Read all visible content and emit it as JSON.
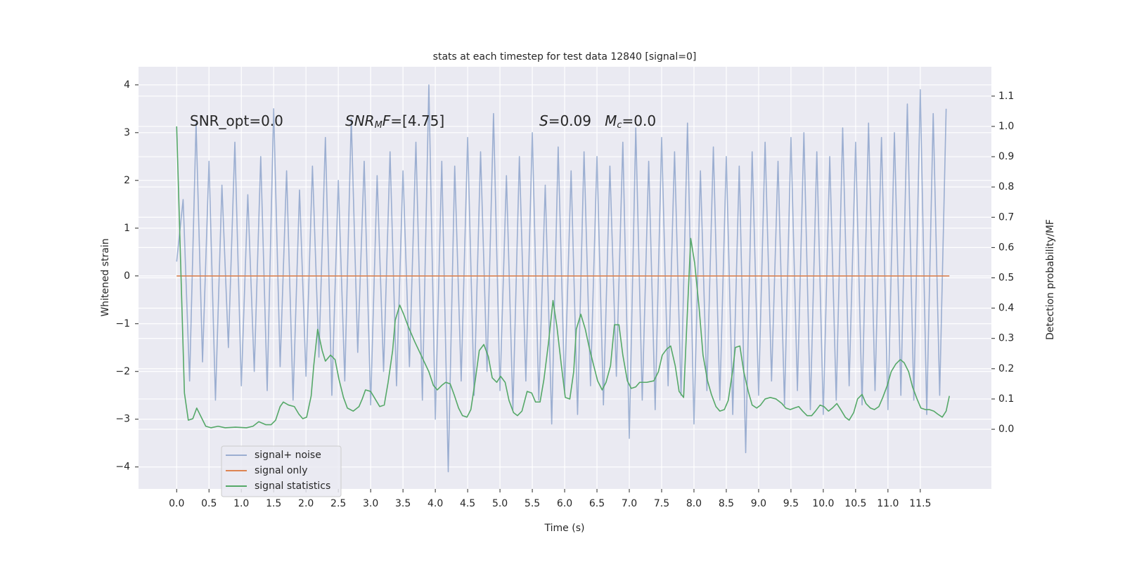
{
  "chart_data": {
    "type": "line",
    "title": "stats at each timestep for test data 12840 [signal=0]",
    "xlabel": "Time (s)",
    "ylabel": "Whitened strain",
    "y2label": "Detection probability/MF",
    "grid": true,
    "background": "#eaeaf2",
    "legend": "lower left",
    "xlim": [
      -0.59,
      12.6
    ],
    "ylim": [
      -4.46,
      4.38
    ],
    "y2lim": [
      -0.197,
      1.197
    ],
    "xticks": [
      {
        "value": 0,
        "label": "0.0"
      },
      0.5,
      {
        "value": 1,
        "label": "1.0"
      },
      1.5,
      {
        "value": 2,
        "label": "2.0"
      },
      2.5,
      {
        "value": 3,
        "label": "3.0"
      },
      3.5,
      {
        "value": 4,
        "label": "4.0"
      },
      4.5,
      {
        "value": 5,
        "label": "5.0"
      },
      5.5,
      {
        "value": 6,
        "label": "6.0"
      },
      6.5,
      {
        "value": 7,
        "label": "7.0"
      },
      7.5,
      {
        "value": 8,
        "label": "8.0"
      },
      8.5,
      {
        "value": 9,
        "label": "9.0"
      },
      9.5,
      {
        "value": 10,
        "label": "10.0"
      },
      10.5,
      {
        "value": 11,
        "label": "11.0"
      },
      11.5
    ],
    "yticks": [
      {
        "value": -4,
        "label": "−4"
      },
      {
        "value": -3,
        "label": "−3"
      },
      {
        "value": -2,
        "label": "−2"
      },
      {
        "value": -1,
        "label": "−1"
      },
      0,
      1,
      2,
      3,
      4
    ],
    "y2ticks": [
      {
        "value": 0,
        "label": "0.0"
      },
      0.1,
      0.2,
      0.3,
      0.4,
      0.5,
      0.6,
      0.7,
      0.8,
      0.9,
      {
        "value": 1,
        "label": "1.0"
      },
      1.1
    ],
    "annotations": [
      {
        "parts": [
          {
            "text": "SNR_opt=0.0",
            "style": "normal"
          }
        ]
      },
      {
        "parts": [
          {
            "text": "SNR",
            "style": "italic"
          },
          {
            "text": "M",
            "style": "sub"
          },
          {
            "text": "F",
            "style": "italic"
          },
          {
            "text": "=[4.75]",
            "style": "normal"
          }
        ]
      },
      {
        "parts": [
          {
            "text": "S",
            "style": "italic"
          },
          {
            "text": "=0.09   ",
            "style": "normal"
          },
          {
            "text": "M",
            "style": "italic"
          },
          {
            "text": "c",
            "style": "sub"
          },
          {
            "text": "=0.0",
            "style": "normal"
          }
        ]
      }
    ],
    "series": [
      {
        "name": "signal+ noise",
        "color": "#4c72b0",
        "opacity": 0.5,
        "axis": "y",
        "x": [
          0,
          0.1,
          0.2,
          0.3,
          0.4,
          0.5,
          0.6,
          0.7,
          0.8,
          0.9,
          1,
          1.1,
          1.2,
          1.3,
          1.4,
          1.5,
          1.6,
          1.7,
          1.8,
          1.9,
          2,
          2.1,
          2.2,
          2.3,
          2.4,
          2.5,
          2.6,
          2.7,
          2.8,
          2.9,
          3,
          3.1,
          3.2,
          3.3,
          3.4,
          3.5,
          3.6,
          3.7,
          3.8,
          3.9,
          4,
          4.1,
          4.2,
          4.3,
          4.4,
          4.5,
          4.6,
          4.7,
          4.8,
          4.9,
          5,
          5.1,
          5.2,
          5.3,
          5.4,
          5.5,
          5.6,
          5.7,
          5.8,
          5.9,
          6,
          6.1,
          6.2,
          6.3,
          6.4,
          6.5,
          6.6,
          6.7,
          6.8,
          6.9,
          7,
          7.1,
          7.2,
          7.3,
          7.4,
          7.5,
          7.6,
          7.7,
          7.8,
          7.9,
          8,
          8.1,
          8.2,
          8.3,
          8.4,
          8.5,
          8.6,
          8.7,
          8.8,
          8.9,
          9,
          9.1,
          9.2,
          9.3,
          9.4,
          9.5,
          9.6,
          9.7,
          9.8,
          9.9,
          10,
          10.1,
          10.2,
          10.3,
          10.4,
          10.5,
          10.6,
          10.7,
          10.8,
          10.9,
          11,
          11.1,
          11.2,
          11.3,
          11.4,
          11.5,
          11.6,
          11.7,
          11.8,
          11.9
        ],
        "values": [
          0.3,
          1.6,
          -2.2,
          3.2,
          -1.8,
          2.4,
          -2.6,
          1.9,
          -1.5,
          2.8,
          -2.3,
          1.7,
          -2.0,
          2.5,
          -2.4,
          3.5,
          -1.9,
          2.2,
          -2.6,
          1.8,
          -2.1,
          2.3,
          -1.7,
          2.9,
          -2.5,
          2.0,
          -2.2,
          3.3,
          -1.6,
          2.4,
          -2.7,
          2.1,
          -2.0,
          2.6,
          -2.3,
          2.2,
          -1.9,
          2.8,
          -2.6,
          4.0,
          -3.0,
          2.4,
          -4.1,
          2.3,
          -2.2,
          2.9,
          -2.5,
          2.6,
          -2.0,
          3.4,
          -2.4,
          2.1,
          -2.8,
          2.5,
          -2.2,
          3.0,
          -2.6,
          1.9,
          -3.1,
          2.7,
          -2.4,
          2.2,
          -2.9,
          2.6,
          -2.3,
          2.5,
          -2.7,
          2.3,
          -2.1,
          2.8,
          -3.4,
          3.1,
          -2.6,
          2.4,
          -2.8,
          2.9,
          -2.3,
          2.6,
          -2.5,
          3.2,
          -3.1,
          2.2,
          -2.4,
          2.7,
          -2.6,
          2.5,
          -2.9,
          2.3,
          -3.7,
          2.6,
          -2.5,
          2.8,
          -2.2,
          2.4,
          -2.7,
          2.9,
          -2.4,
          3.0,
          -2.8,
          2.6,
          -2.9,
          2.5,
          -2.6,
          3.1,
          -2.3,
          2.8,
          -2.7,
          3.2,
          -2.4,
          2.9,
          -2.8,
          3.0,
          -2.5,
          3.6,
          -2.6,
          3.9,
          -2.9,
          3.4,
          -2.5,
          3.5
        ]
      },
      {
        "name": "signal only",
        "color": "#dd8452",
        "opacity": 1,
        "axis": "y",
        "x": [
          0,
          11.95
        ],
        "values": [
          0,
          0
        ]
      },
      {
        "name": "signal statistics",
        "color": "#55a868",
        "opacity": 1,
        "axis": "y2",
        "x": [
          0,
          0.12,
          0.18,
          0.25,
          0.31,
          0.45,
          0.53,
          0.64,
          0.75,
          0.91,
          1.08,
          1.18,
          1.27,
          1.38,
          1.46,
          1.53,
          1.6,
          1.65,
          1.73,
          1.82,
          1.89,
          1.95,
          2.01,
          2.08,
          2.12,
          2.18,
          2.25,
          2.3,
          2.38,
          2.45,
          2.51,
          2.58,
          2.64,
          2.73,
          2.82,
          2.87,
          2.92,
          3,
          3.07,
          3.14,
          3.21,
          3.27,
          3.34,
          3.38,
          3.45,
          3.51,
          3.58,
          3.68,
          3.79,
          3.9,
          3.97,
          4.03,
          4.1,
          4.16,
          4.23,
          4.29,
          4.36,
          4.42,
          4.49,
          4.55,
          4.62,
          4.68,
          4.75,
          4.82,
          4.88,
          4.95,
          5.01,
          5.08,
          5.14,
          5.21,
          5.27,
          5.34,
          5.42,
          5.49,
          5.55,
          5.62,
          5.68,
          5.75,
          5.82,
          5.88,
          5.95,
          6.01,
          6.08,
          6.14,
          6.18,
          6.25,
          6.32,
          6.38,
          6.45,
          6.51,
          6.58,
          6.64,
          6.71,
          6.77,
          6.84,
          6.9,
          6.97,
          7.03,
          7.1,
          7.16,
          7.27,
          7.38,
          7.45,
          7.51,
          7.58,
          7.64,
          7.71,
          7.77,
          7.84,
          7.88,
          7.95,
          8.01,
          8.08,
          8.14,
          8.21,
          8.27,
          8.34,
          8.4,
          8.47,
          8.53,
          8.6,
          8.64,
          8.71,
          8.77,
          8.84,
          8.9,
          8.97,
          9.03,
          9.1,
          9.18,
          9.27,
          9.36,
          9.42,
          9.49,
          9.55,
          9.62,
          9.68,
          9.75,
          9.82,
          9.88,
          9.95,
          10.01,
          10.08,
          10.14,
          10.21,
          10.27,
          10.34,
          10.4,
          10.47,
          10.53,
          10.6,
          10.66,
          10.73,
          10.79,
          10.86,
          10.92,
          10.99,
          11.05,
          11.12,
          11.19,
          11.25,
          11.32,
          11.38,
          11.45,
          11.51,
          11.58,
          11.64,
          11.71,
          11.77,
          11.84,
          11.9,
          11.95
        ],
        "values": [
          1.0,
          0.12,
          0.03,
          0.035,
          0.07,
          0.01,
          0.005,
          0.01,
          0.005,
          0.007,
          0.005,
          0.01,
          0.025,
          0.015,
          0.015,
          0.03,
          0.075,
          0.09,
          0.08,
          0.075,
          0.05,
          0.035,
          0.04,
          0.11,
          0.21,
          0.33,
          0.26,
          0.225,
          0.245,
          0.23,
          0.165,
          0.105,
          0.07,
          0.06,
          0.075,
          0.1,
          0.13,
          0.125,
          0.1,
          0.075,
          0.08,
          0.155,
          0.26,
          0.36,
          0.41,
          0.38,
          0.34,
          0.29,
          0.24,
          0.19,
          0.145,
          0.13,
          0.145,
          0.155,
          0.15,
          0.115,
          0.07,
          0.045,
          0.04,
          0.065,
          0.165,
          0.26,
          0.28,
          0.24,
          0.17,
          0.155,
          0.175,
          0.155,
          0.095,
          0.055,
          0.045,
          0.06,
          0.125,
          0.12,
          0.09,
          0.09,
          0.165,
          0.285,
          0.425,
          0.34,
          0.21,
          0.105,
          0.1,
          0.19,
          0.33,
          0.38,
          0.33,
          0.27,
          0.21,
          0.16,
          0.13,
          0.155,
          0.21,
          0.345,
          0.345,
          0.245,
          0.16,
          0.135,
          0.14,
          0.155,
          0.155,
          0.16,
          0.19,
          0.245,
          0.265,
          0.275,
          0.21,
          0.125,
          0.105,
          0.3,
          0.63,
          0.55,
          0.4,
          0.245,
          0.16,
          0.115,
          0.075,
          0.06,
          0.065,
          0.095,
          0.195,
          0.27,
          0.275,
          0.19,
          0.125,
          0.08,
          0.07,
          0.08,
          0.1,
          0.105,
          0.1,
          0.085,
          0.07,
          0.065,
          0.07,
          0.075,
          0.06,
          0.045,
          0.045,
          0.06,
          0.08,
          0.075,
          0.06,
          0.07,
          0.085,
          0.065,
          0.04,
          0.03,
          0.055,
          0.1,
          0.115,
          0.085,
          0.07,
          0.065,
          0.075,
          0.105,
          0.145,
          0.19,
          0.215,
          0.23,
          0.22,
          0.19,
          0.14,
          0.1,
          0.07,
          0.065,
          0.065,
          0.06,
          0.05,
          0.04,
          0.06,
          0.11
        ]
      }
    ]
  }
}
